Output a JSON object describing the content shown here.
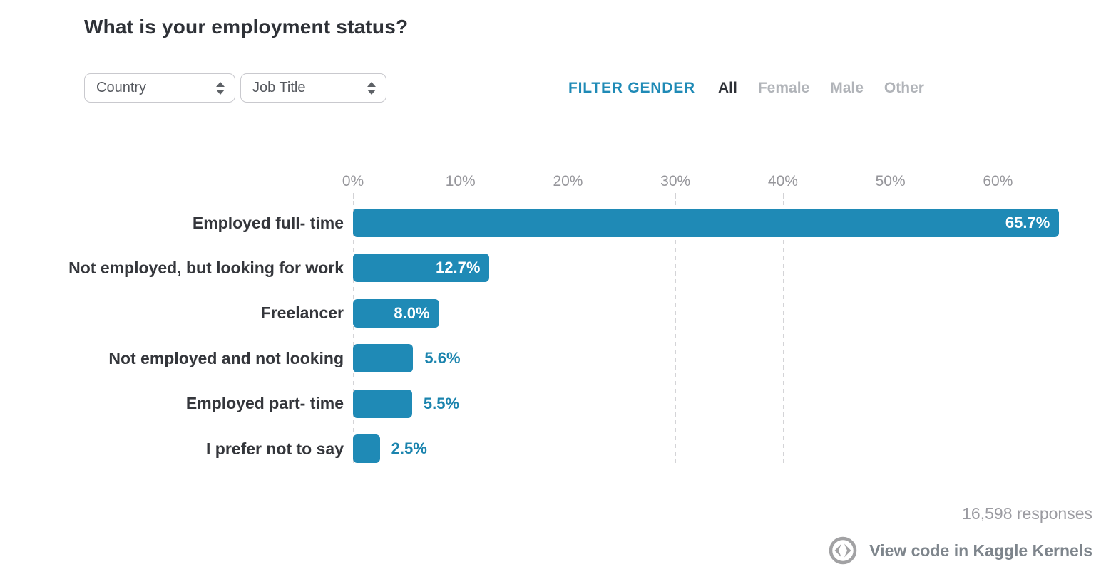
{
  "page": {
    "title": "What is your employment status?"
  },
  "controls": {
    "country_dropdown": {
      "value": "Country"
    },
    "job_title_dropdown": {
      "value": "Job Title"
    },
    "gender_filter": {
      "label": "FILTER GENDER",
      "options": [
        {
          "label": "All",
          "selected": true
        },
        {
          "label": "Female",
          "selected": false
        },
        {
          "label": "Male",
          "selected": false
        },
        {
          "label": "Other",
          "selected": false
        }
      ]
    }
  },
  "chart_data": {
    "type": "bar",
    "orientation": "horizontal",
    "title": "What is your employment status?",
    "categories": [
      "Employed full- time",
      "Not employed, but looking for work",
      "Freelancer",
      "Not employed and not looking",
      "Employed part- time",
      "I prefer not to say"
    ],
    "values": [
      65.7,
      12.7,
      8.0,
      5.6,
      5.5,
      2.5
    ],
    "value_labels": [
      "65.7%",
      "12.7%",
      "8.0%",
      "5.6%",
      "5.5%",
      "2.5%"
    ],
    "x_ticks": [
      0,
      10,
      20,
      30,
      40,
      50,
      60
    ],
    "x_tick_labels": [
      "0%",
      "10%",
      "20%",
      "30%",
      "40%",
      "50%",
      "60%"
    ],
    "xlim": [
      0,
      68.8
    ],
    "grid": "vertical-dashed",
    "legend": "none",
    "bar_color": "#1f8ab6",
    "value_label_outside_color": "#1b84ae",
    "value_label_inside_color": "#ffffff",
    "inside_label_min_value": 8
  },
  "footer": {
    "responses": "16,598 responses",
    "view_code_label": "View code in Kaggle Kernels",
    "code_icon": "code-brackets-circle-icon",
    "icon_color": "#a2a2a4"
  },
  "colors": {
    "accent_blue": "#1f8ab6",
    "title_text": "#2e3137",
    "muted_text": "#b1b4b9",
    "axis_text": "#96969b",
    "grid_line": "#d4d4d7"
  }
}
